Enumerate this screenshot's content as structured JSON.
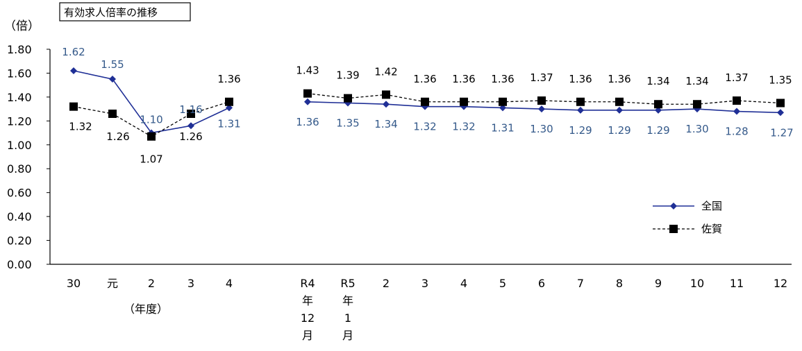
{
  "chart_data": {
    "type": "line",
    "title": "有効求人倍率の推移",
    "unit": "（倍）",
    "fiscal_year_note": "（年度）",
    "ylim": [
      0,
      1.8
    ],
    "y_ticks": [
      "0.00",
      "0.20",
      "0.40",
      "0.60",
      "0.80",
      "1.00",
      "1.20",
      "1.40",
      "1.60",
      "1.80"
    ],
    "grid": false,
    "legend_position": "right",
    "groups": [
      {
        "categories": [
          [
            "30"
          ],
          [
            "元"
          ],
          [
            "2"
          ],
          [
            "3"
          ],
          [
            "4"
          ]
        ],
        "series": [
          {
            "name": "全国",
            "values": [
              1.62,
              1.55,
              1.1,
              1.16,
              1.31
            ],
            "labels": [
              "1.62",
              "1.55",
              "1.10",
              "1.16",
              "1.31"
            ]
          },
          {
            "name": "佐賀",
            "values": [
              1.32,
              1.26,
              1.07,
              1.26,
              1.36
            ],
            "labels": [
              "1.32",
              "1.26",
              "1.07",
              "1.26",
              "1.36"
            ]
          }
        ]
      },
      {
        "categories": [
          [
            "R4",
            "年",
            "12",
            "月"
          ],
          [
            "R5",
            "年",
            "1",
            "月"
          ],
          [
            "2"
          ],
          [
            "3"
          ],
          [
            "4"
          ],
          [
            "5"
          ],
          [
            "6"
          ],
          [
            "7"
          ],
          [
            "8"
          ],
          [
            "9"
          ],
          [
            "10"
          ],
          [
            "11"
          ],
          [
            "12"
          ]
        ],
        "series": [
          {
            "name": "全国",
            "values": [
              1.36,
              1.35,
              1.34,
              1.32,
              1.32,
              1.31,
              1.3,
              1.29,
              1.29,
              1.29,
              1.3,
              1.28,
              1.27
            ],
            "labels": [
              "1.36",
              "1.35",
              "1.34",
              "1.32",
              "1.32",
              "1.31",
              "1.30",
              "1.29",
              "1.29",
              "1.29",
              "1.30",
              "1.28",
              "1.27"
            ]
          },
          {
            "name": "佐賀",
            "values": [
              1.43,
              1.39,
              1.42,
              1.36,
              1.36,
              1.36,
              1.37,
              1.36,
              1.36,
              1.34,
              1.34,
              1.37,
              1.35
            ],
            "labels": [
              "1.43",
              "1.39",
              "1.42",
              "1.36",
              "1.36",
              "1.36",
              "1.37",
              "1.36",
              "1.36",
              "1.34",
              "1.34",
              "1.37",
              "1.35"
            ]
          }
        ]
      }
    ],
    "legend": [
      {
        "name": "全国",
        "marker": "diamond",
        "line": "solid",
        "color": "#1f2f96"
      },
      {
        "name": "佐賀",
        "marker": "square",
        "line": "dashed",
        "color": "#000000"
      }
    ]
  }
}
